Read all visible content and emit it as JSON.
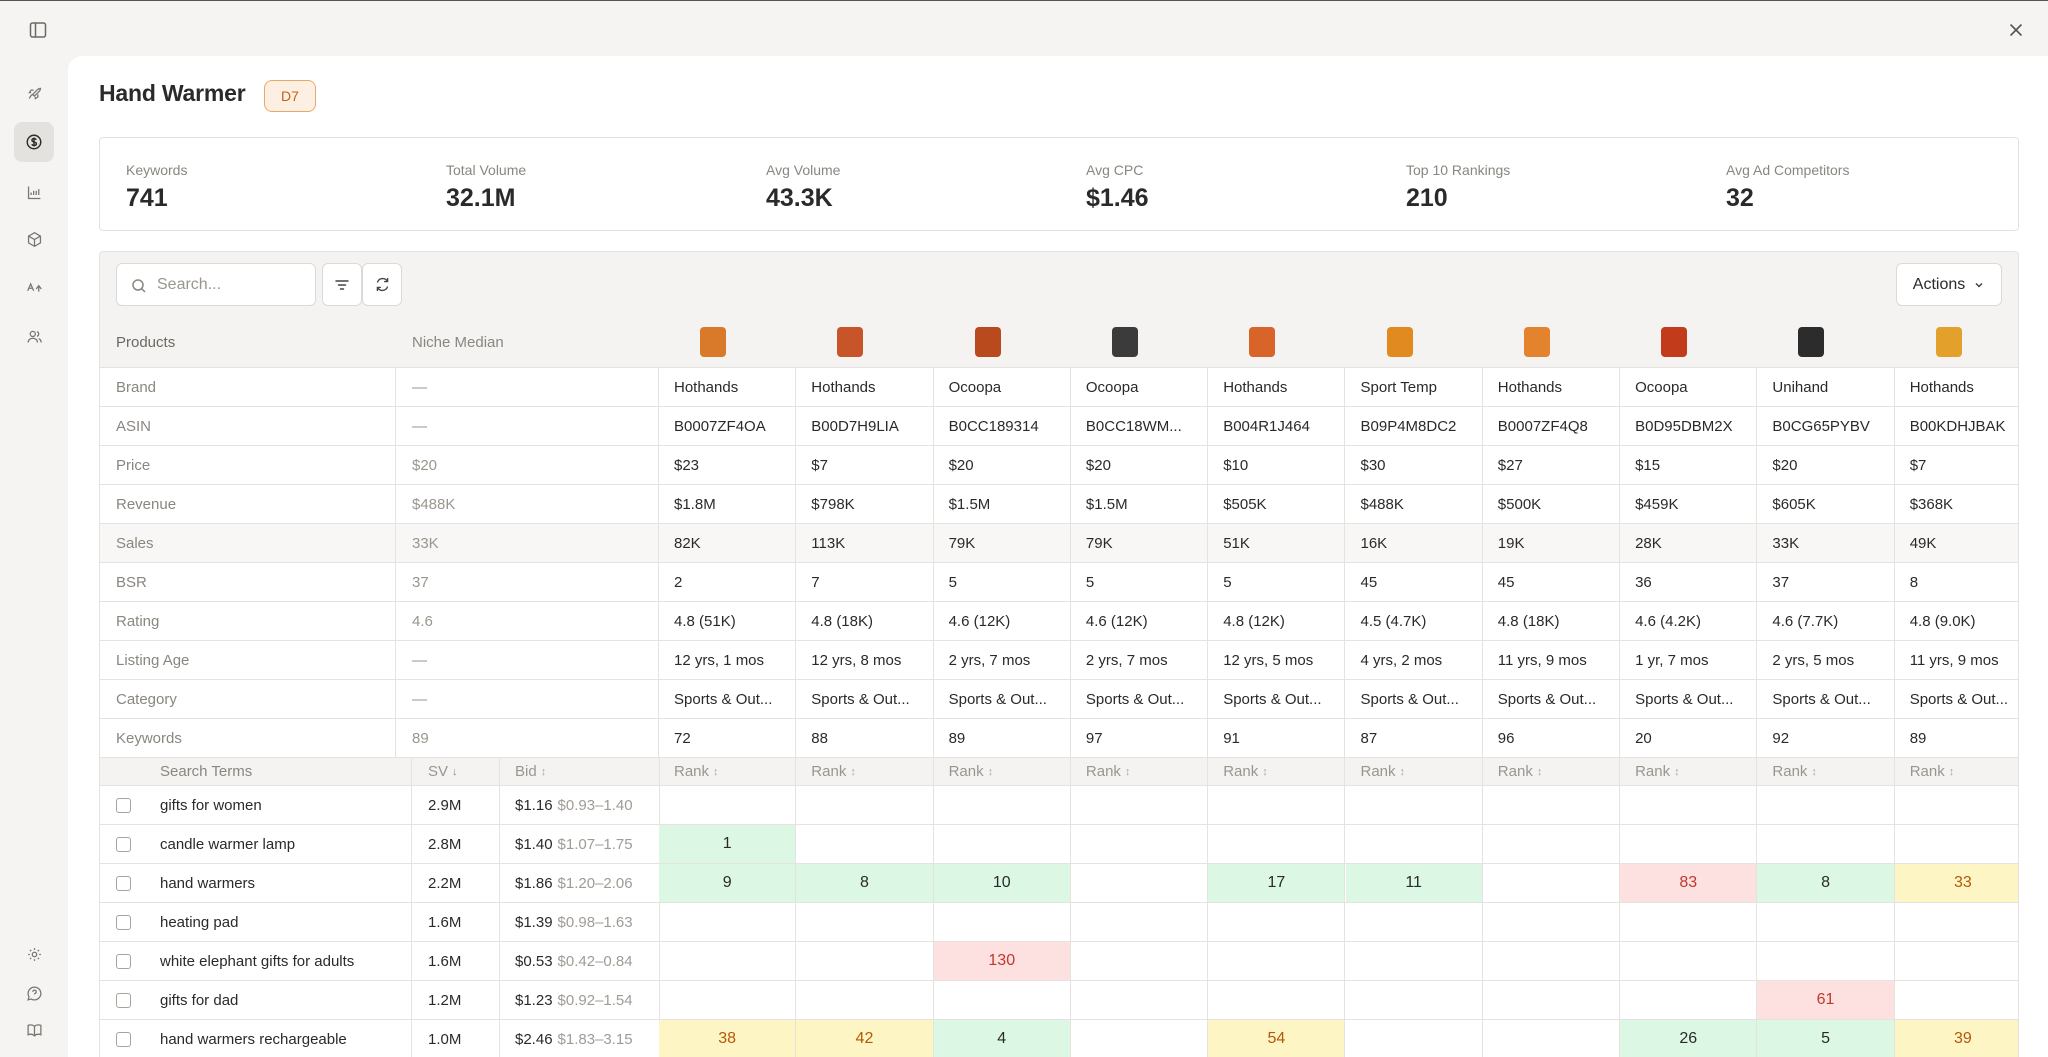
{
  "header": {
    "title": "Hand Warmer",
    "badge": "D7"
  },
  "stats": [
    {
      "label": "Keywords",
      "value": "741"
    },
    {
      "label": "Total Volume",
      "value": "32.1M"
    },
    {
      "label": "Avg Volume",
      "value": "43.3K"
    },
    {
      "label": "Avg CPC",
      "value": "$1.46"
    },
    {
      "label": "Top 10 Rankings",
      "value": "210"
    },
    {
      "label": "Avg Ad Competitors",
      "value": "32"
    }
  ],
  "toolbar": {
    "search_placeholder": "Search...",
    "actions_label": "Actions"
  },
  "table": {
    "products_label": "Products",
    "median_label": "Niche Median",
    "products": [
      {
        "thumb_color": "#d97a2b"
      },
      {
        "thumb_color": "#c8552a"
      },
      {
        "thumb_color": "#b84a1e"
      },
      {
        "thumb_color": "#3b3b3b"
      },
      {
        "thumb_color": "#d9642a"
      },
      {
        "thumb_color": "#e08a1f"
      },
      {
        "thumb_color": "#e4832e"
      },
      {
        "thumb_color": "#c23b1a"
      },
      {
        "thumb_color": "#2c2c2c"
      },
      {
        "thumb_color": "#e3a02a"
      }
    ],
    "attributes": [
      {
        "label": "Brand",
        "median": "—",
        "values": [
          "Hothands",
          "Hothands",
          "Ocoopa",
          "Ocoopa",
          "Hothands",
          "Sport Temp",
          "Hothands",
          "Ocoopa",
          "Unihand",
          "Hothands"
        ]
      },
      {
        "label": "ASIN",
        "median": "—",
        "values": [
          "B0007ZF4OA",
          "B00D7H9LIA",
          "B0CC189314",
          "B0CC18WM...",
          "B004R1J464",
          "B09P4M8DC2",
          "B0007ZF4Q8",
          "B0D95DBM2X",
          "B0CG65PYBV",
          "B00KDHJBAK"
        ]
      },
      {
        "label": "Price",
        "median": "$20",
        "values": [
          "$23",
          "$7",
          "$20",
          "$20",
          "$10",
          "$30",
          "$27",
          "$15",
          "$20",
          "$7"
        ]
      },
      {
        "label": "Revenue",
        "median": "$488K",
        "values": [
          "$1.8M",
          "$798K",
          "$1.5M",
          "$1.5M",
          "$505K",
          "$488K",
          "$500K",
          "$459K",
          "$605K",
          "$368K"
        ]
      },
      {
        "label": "Sales",
        "median": "33K",
        "values": [
          "82K",
          "113K",
          "79K",
          "79K",
          "51K",
          "16K",
          "19K",
          "28K",
          "33K",
          "49K"
        ]
      },
      {
        "label": "BSR",
        "median": "37",
        "values": [
          "2",
          "7",
          "5",
          "5",
          "5",
          "45",
          "45",
          "36",
          "37",
          "8"
        ]
      },
      {
        "label": "Rating",
        "median": "4.6",
        "values": [
          "4.8 (51K)",
          "4.8 (18K)",
          "4.6 (12K)",
          "4.6 (12K)",
          "4.8 (12K)",
          "4.5 (4.7K)",
          "4.8 (18K)",
          "4.6 (4.2K)",
          "4.6 (7.7K)",
          "4.8 (9.0K)"
        ]
      },
      {
        "label": "Listing Age",
        "median": "—",
        "values": [
          "12 yrs, 1 mos",
          "12 yrs, 8 mos",
          "2 yrs, 7 mos",
          "2 yrs, 7 mos",
          "12 yrs, 5 mos",
          "4 yrs, 2 mos",
          "11 yrs, 9 mos",
          "1 yr, 7 mos",
          "2 yrs, 5 mos",
          "11 yrs, 9 mos"
        ]
      },
      {
        "label": "Category",
        "median": "—",
        "values": [
          "Sports & Out...",
          "Sports & Out...",
          "Sports & Out...",
          "Sports & Out...",
          "Sports & Out...",
          "Sports & Out...",
          "Sports & Out...",
          "Sports & Out...",
          "Sports & Out...",
          "Sports & Out..."
        ]
      },
      {
        "label": "Keywords",
        "median": "89",
        "values": [
          "72",
          "88",
          "89",
          "97",
          "91",
          "87",
          "96",
          "20",
          "92",
          "89"
        ]
      }
    ],
    "terms_header": {
      "term": "Search Terms",
      "sv": "SV",
      "bid": "Bid",
      "rank": "Rank"
    },
    "terms": [
      {
        "term": "gifts for women",
        "sv": "2.9M",
        "bid": "$1.16",
        "range": "$0.93–1.40",
        "ranks": [
          "",
          "",
          "",
          "",
          "",
          "",
          "",
          "",
          "",
          ""
        ]
      },
      {
        "term": "candle warmer lamp",
        "sv": "2.8M",
        "bid": "$1.40",
        "range": "$1.07–1.75",
        "ranks": [
          "1",
          "",
          "",
          "",
          "",
          "",
          "",
          "",
          "",
          ""
        ]
      },
      {
        "term": "hand warmers",
        "sv": "2.2M",
        "bid": "$1.86",
        "range": "$1.20–2.06",
        "ranks": [
          "9",
          "8",
          "10",
          "",
          "17",
          "11",
          "",
          "83",
          "8",
          "33"
        ]
      },
      {
        "term": "heating pad",
        "sv": "1.6M",
        "bid": "$1.39",
        "range": "$0.98–1.63",
        "ranks": [
          "",
          "",
          "",
          "",
          "",
          "",
          "",
          "",
          "",
          ""
        ]
      },
      {
        "term": "white elephant gifts for adults",
        "sv": "1.6M",
        "bid": "$0.53",
        "range": "$0.42–0.84",
        "ranks": [
          "",
          "",
          "130",
          "",
          "",
          "",
          "",
          "",
          "",
          ""
        ]
      },
      {
        "term": "gifts for dad",
        "sv": "1.2M",
        "bid": "$1.23",
        "range": "$0.92–1.54",
        "ranks": [
          "",
          "",
          "",
          "",
          "",
          "",
          "",
          "",
          "61",
          ""
        ]
      },
      {
        "term": "hand warmers rechargeable",
        "sv": "1.0M",
        "bid": "$2.46",
        "range": "$1.83–3.15",
        "ranks": [
          "38",
          "42",
          "4",
          "",
          "54",
          "",
          "",
          "26",
          "5",
          "39"
        ]
      }
    ]
  }
}
